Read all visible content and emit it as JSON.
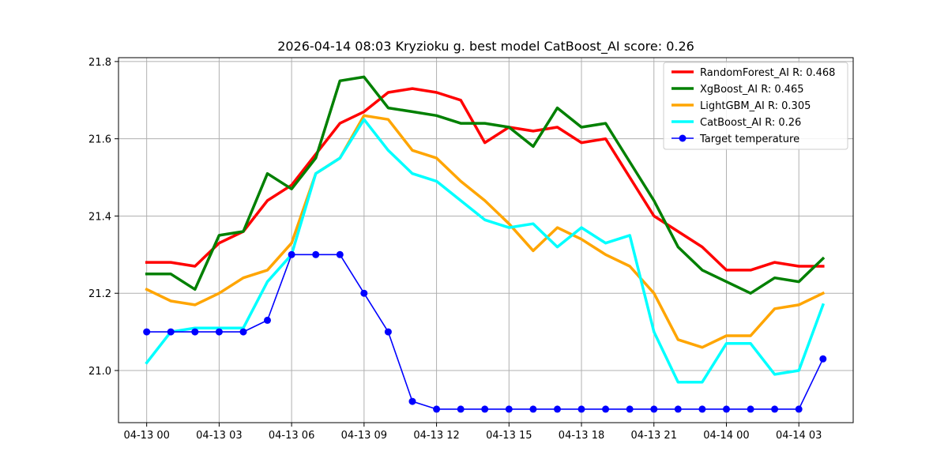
{
  "chart_data": {
    "type": "line",
    "title": "2026-04-14 08:03 Kryzioku g. best model CatBoost_AI score: 0.26",
    "xlabel": "",
    "ylabel": "",
    "x": [
      "2026-04-13 00:00",
      "2026-04-13 01:00",
      "2026-04-13 02:00",
      "2026-04-13 03:00",
      "2026-04-13 04:00",
      "2026-04-13 05:00",
      "2026-04-13 06:00",
      "2026-04-13 07:00",
      "2026-04-13 08:00",
      "2026-04-13 09:00",
      "2026-04-13 10:00",
      "2026-04-13 11:00",
      "2026-04-13 12:00",
      "2026-04-13 13:00",
      "2026-04-13 14:00",
      "2026-04-13 15:00",
      "2026-04-13 16:00",
      "2026-04-13 17:00",
      "2026-04-13 18:00",
      "2026-04-13 19:00",
      "2026-04-13 20:00",
      "2026-04-13 21:00",
      "2026-04-13 22:00",
      "2026-04-13 23:00",
      "2026-04-14 00:00",
      "2026-04-14 01:00",
      "2026-04-14 02:00",
      "2026-04-14 03:00",
      "2026-04-14 04:00"
    ],
    "xticks": [
      {
        "label": "04-13 00",
        "x": "2026-04-13 00:00"
      },
      {
        "label": "04-13 03",
        "x": "2026-04-13 03:00"
      },
      {
        "label": "04-13 06",
        "x": "2026-04-13 06:00"
      },
      {
        "label": "04-13 09",
        "x": "2026-04-13 09:00"
      },
      {
        "label": "04-13 12",
        "x": "2026-04-13 12:00"
      },
      {
        "label": "04-13 15",
        "x": "2026-04-13 15:00"
      },
      {
        "label": "04-13 18",
        "x": "2026-04-13 18:00"
      },
      {
        "label": "04-13 21",
        "x": "2026-04-13 21:00"
      },
      {
        "label": "04-14 00",
        "x": "2026-04-14 00:00"
      },
      {
        "label": "04-14 03",
        "x": "2026-04-14 03:00"
      }
    ],
    "yticks": [
      "21.0",
      "21.2",
      "21.4",
      "21.6",
      "21.8"
    ],
    "xlim": [
      "2026-04-12 22:50",
      "2026-04-14 05:15"
    ],
    "ylim": [
      20.865,
      21.81
    ],
    "grid": true,
    "legend": "top-right",
    "series": [
      {
        "name": "RandomForest_AI R: 0.468",
        "color": "#ff0000",
        "marker": false,
        "values": [
          21.28,
          21.28,
          21.27,
          21.33,
          21.36,
          21.44,
          21.48,
          21.56,
          21.64,
          21.67,
          21.72,
          21.73,
          21.72,
          21.7,
          21.59,
          21.63,
          21.62,
          21.63,
          21.59,
          21.6,
          21.5,
          21.4,
          21.36,
          21.32,
          21.26,
          21.26,
          21.28,
          21.27,
          21.27
        ]
      },
      {
        "name": "XgBoost_AI R: 0.465",
        "color": "#008000",
        "marker": false,
        "values": [
          21.25,
          21.25,
          21.21,
          21.35,
          21.36,
          21.51,
          21.47,
          21.55,
          21.75,
          21.76,
          21.68,
          21.67,
          21.66,
          21.64,
          21.64,
          21.63,
          21.58,
          21.68,
          21.63,
          21.64,
          21.54,
          21.44,
          21.32,
          21.26,
          21.23,
          21.2,
          21.24,
          21.23,
          21.29
        ]
      },
      {
        "name": "LightGBM_AI R: 0.305",
        "color": "#ffa500",
        "marker": false,
        "values": [
          21.21,
          21.18,
          21.17,
          21.2,
          21.24,
          21.26,
          21.33,
          21.51,
          21.55,
          21.66,
          21.65,
          21.57,
          21.55,
          21.49,
          21.44,
          21.38,
          21.31,
          21.37,
          21.34,
          21.3,
          21.27,
          21.2,
          21.08,
          21.06,
          21.09,
          21.09,
          21.16,
          21.17,
          21.2
        ]
      },
      {
        "name": "CatBoost_AI R: 0.26",
        "color": "#00ffff",
        "marker": false,
        "values": [
          21.02,
          21.1,
          21.11,
          21.11,
          21.11,
          21.23,
          21.3,
          21.51,
          21.55,
          21.65,
          21.57,
          21.51,
          21.49,
          21.44,
          21.39,
          21.37,
          21.38,
          21.32,
          21.37,
          21.33,
          21.35,
          21.1,
          20.97,
          20.97,
          21.07,
          21.07,
          20.99,
          21.0,
          21.17
        ]
      },
      {
        "name": "Target temperature",
        "color": "#0000ff",
        "marker": true,
        "values": [
          21.1,
          21.1,
          21.1,
          21.1,
          21.1,
          21.13,
          21.3,
          21.3,
          21.3,
          21.2,
          21.1,
          20.92,
          20.9,
          20.9,
          20.9,
          20.9,
          20.9,
          20.9,
          20.9,
          20.9,
          20.9,
          20.9,
          20.9,
          20.9,
          20.9,
          20.9,
          20.9,
          20.9,
          21.03
        ]
      }
    ]
  }
}
